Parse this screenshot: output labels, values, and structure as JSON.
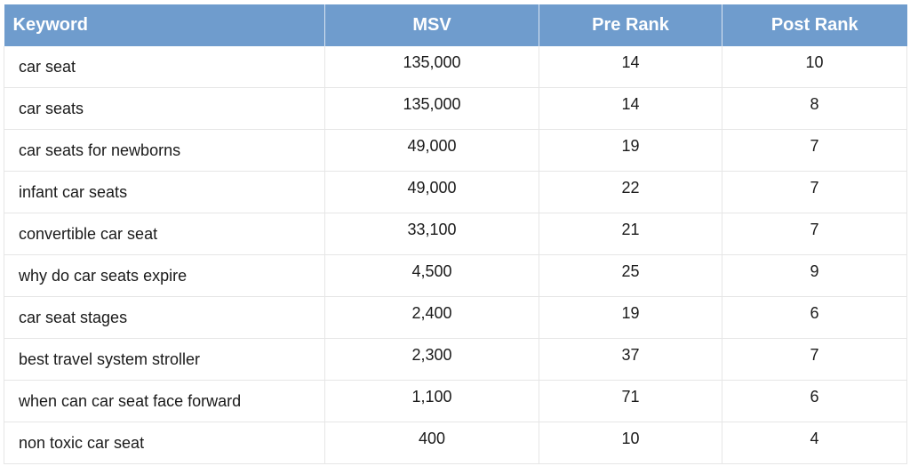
{
  "table": {
    "headers": [
      "Keyword",
      "MSV",
      "Pre Rank",
      "Post  Rank"
    ],
    "rows": [
      {
        "keyword": "car seat",
        "msv": "135,000",
        "pre_rank": "14",
        "post_rank": "10"
      },
      {
        "keyword": "car seats",
        "msv": "135,000",
        "pre_rank": "14",
        "post_rank": "8"
      },
      {
        "keyword": "car seats for newborns",
        "msv": "49,000",
        "pre_rank": "19",
        "post_rank": "7"
      },
      {
        "keyword": "infant car seats",
        "msv": "49,000",
        "pre_rank": "22",
        "post_rank": "7"
      },
      {
        "keyword": "convertible car seat",
        "msv": "33,100",
        "pre_rank": "21",
        "post_rank": "7"
      },
      {
        "keyword": "why do car seats expire",
        "msv": "4,500",
        "pre_rank": "25",
        "post_rank": "9"
      },
      {
        "keyword": "car seat stages",
        "msv": "2,400",
        "pre_rank": "19",
        "post_rank": "6"
      },
      {
        "keyword": "best travel system stroller",
        "msv": "2,300",
        "pre_rank": "37",
        "post_rank": "7"
      },
      {
        "keyword": "when can car seat face forward",
        "msv": "1,100",
        "pre_rank": "71",
        "post_rank": "6"
      },
      {
        "keyword": "non toxic car seat",
        "msv": "400",
        "pre_rank": "10",
        "post_rank": "4"
      }
    ]
  },
  "colors": {
    "header_background": "#6f9ccd",
    "header_text": "#ffffff",
    "grid_line": "#e6e6e6",
    "body_text": "#1a1a1a"
  }
}
